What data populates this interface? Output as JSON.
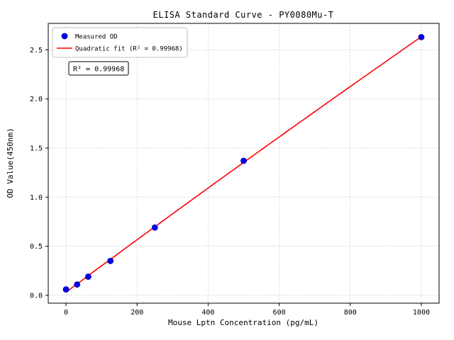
{
  "chart_data": {
    "type": "scatter",
    "title": "ELISA Standard Curve - PY0080Mu-T",
    "xlabel": "Mouse Lptn Concentration (pg/mL)",
    "ylabel": "OD Value(450nm)",
    "xlim": [
      -50,
      1050
    ],
    "ylim": [
      -0.08,
      2.77
    ],
    "xticks": [
      0,
      200,
      400,
      600,
      800,
      1000
    ],
    "yticks": [
      0.0,
      0.5,
      1.0,
      1.5,
      2.0,
      2.5
    ],
    "grid": true,
    "series": [
      {
        "name": "Measured OD",
        "type": "scatter",
        "color": "#0000ee",
        "x": [
          0,
          31.25,
          62.5,
          125,
          250,
          500,
          1000
        ],
        "y": [
          0.06,
          0.11,
          0.19,
          0.35,
          0.69,
          1.37,
          2.63
        ]
      },
      {
        "name": "Quadratic fit (R² = 0.99968)",
        "type": "line",
        "color": "#ff0000",
        "fit": "quadratic"
      }
    ],
    "legend": {
      "position": "upper left",
      "entries": [
        "Measured OD",
        "Quadratic fit (R² = 0.99968)"
      ]
    },
    "annotation": "R² = 0.99968",
    "colors": {
      "scatter": "#0000ee",
      "fit_line": "#ff0000",
      "grid": "#c9c9c9"
    }
  }
}
